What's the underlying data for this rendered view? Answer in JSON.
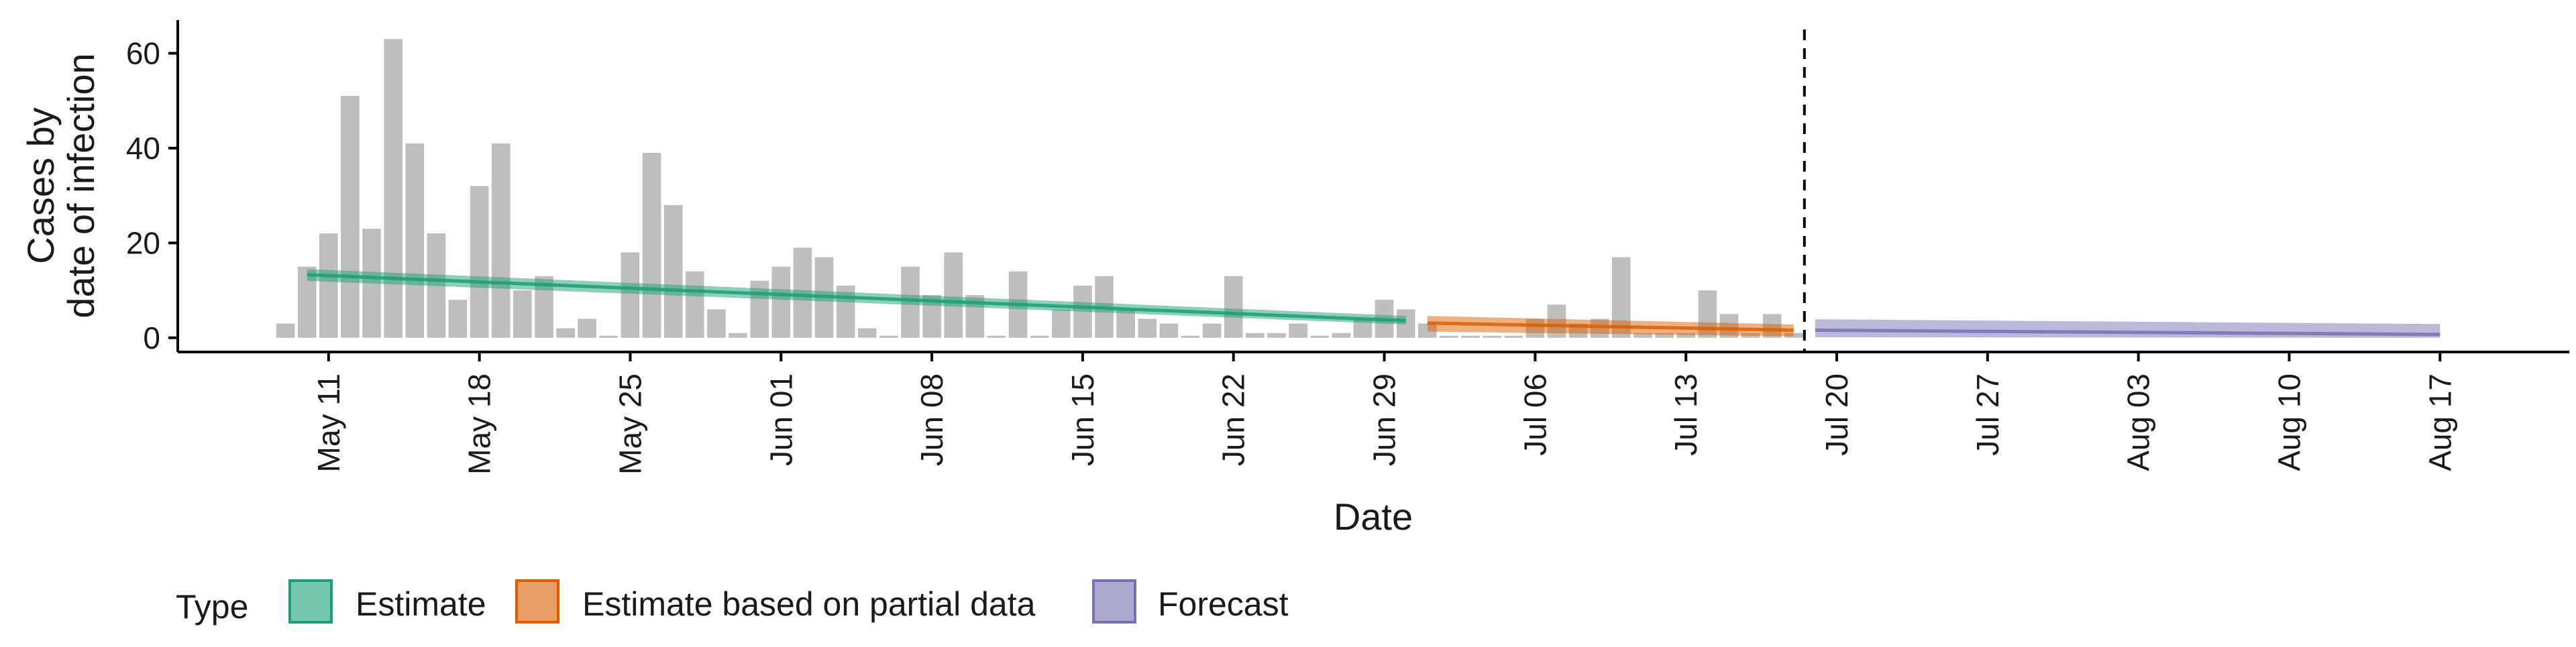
{
  "chart_data": {
    "type": "bar",
    "xlabel": "Date",
    "ylabel_lines": [
      "Cases by",
      "date of infection"
    ],
    "ylim": [
      -3,
      67
    ],
    "yticks": [
      0,
      20,
      40,
      60
    ],
    "xlim": [
      "2020-05-04",
      "2020-08-23"
    ],
    "xticks": [
      {
        "date": "2020-05-11",
        "label": "May 11"
      },
      {
        "date": "2020-05-18",
        "label": "May 18"
      },
      {
        "date": "2020-05-25",
        "label": "May 25"
      },
      {
        "date": "2020-06-01",
        "label": "Jun 01"
      },
      {
        "date": "2020-06-08",
        "label": "Jun 08"
      },
      {
        "date": "2020-06-15",
        "label": "Jun 15"
      },
      {
        "date": "2020-06-22",
        "label": "Jun 22"
      },
      {
        "date": "2020-06-29",
        "label": "Jun 29"
      },
      {
        "date": "2020-07-06",
        "label": "Jul 06"
      },
      {
        "date": "2020-07-13",
        "label": "Jul 13"
      },
      {
        "date": "2020-07-20",
        "label": "Jul 20"
      },
      {
        "date": "2020-07-27",
        "label": "Jul 27"
      },
      {
        "date": "2020-08-03",
        "label": "Aug 03"
      },
      {
        "date": "2020-08-10",
        "label": "Aug 10"
      },
      {
        "date": "2020-08-17",
        "label": "Aug 17"
      }
    ],
    "bars": {
      "start_date": "2020-05-09",
      "values": [
        3,
        15,
        22,
        51,
        23,
        63,
        41,
        22,
        8,
        32,
        41,
        10,
        13,
        2,
        4,
        0,
        18,
        39,
        28,
        14,
        6,
        1,
        12,
        15,
        19,
        17,
        11,
        2,
        0,
        15,
        9,
        18,
        9,
        0,
        14,
        0,
        6,
        11,
        13,
        6,
        4,
        3,
        0,
        3,
        13,
        1,
        1,
        3,
        0,
        1,
        4,
        8,
        6,
        3,
        0,
        0,
        0,
        0,
        4,
        7,
        3,
        4,
        17,
        1,
        1,
        1,
        10,
        5,
        1,
        5,
        1
      ],
      "color": "#bebebe"
    },
    "report_date": "2020-07-19",
    "series": [
      {
        "name": "Estimate",
        "color": "#1b9e77",
        "start_date": "2020-05-10",
        "end_date": "2020-06-30",
        "median": [
          13.3,
          3.6
        ],
        "lower": [
          12.0,
          2.8
        ],
        "upper": [
          14.5,
          4.6
        ]
      },
      {
        "name": "Estimate based on partial data",
        "color": "#d95f02",
        "start_date": "2020-07-01",
        "end_date": "2020-07-18",
        "median": [
          3.1,
          1.6
        ],
        "lower": [
          1.3,
          0.3
        ],
        "upper": [
          4.6,
          2.8
        ]
      },
      {
        "name": "Forecast",
        "color": "#7570b3",
        "start_date": "2020-07-19",
        "end_date": "2020-08-17",
        "median": [
          1.6,
          0.7
        ],
        "lower": [
          0.1,
          0.0
        ],
        "upper": [
          3.9,
          2.9
        ]
      }
    ],
    "legend": {
      "title": "Type",
      "placement": "bottom-left",
      "items": [
        "Estimate",
        "Estimate based on partial data",
        "Forecast"
      ]
    }
  }
}
